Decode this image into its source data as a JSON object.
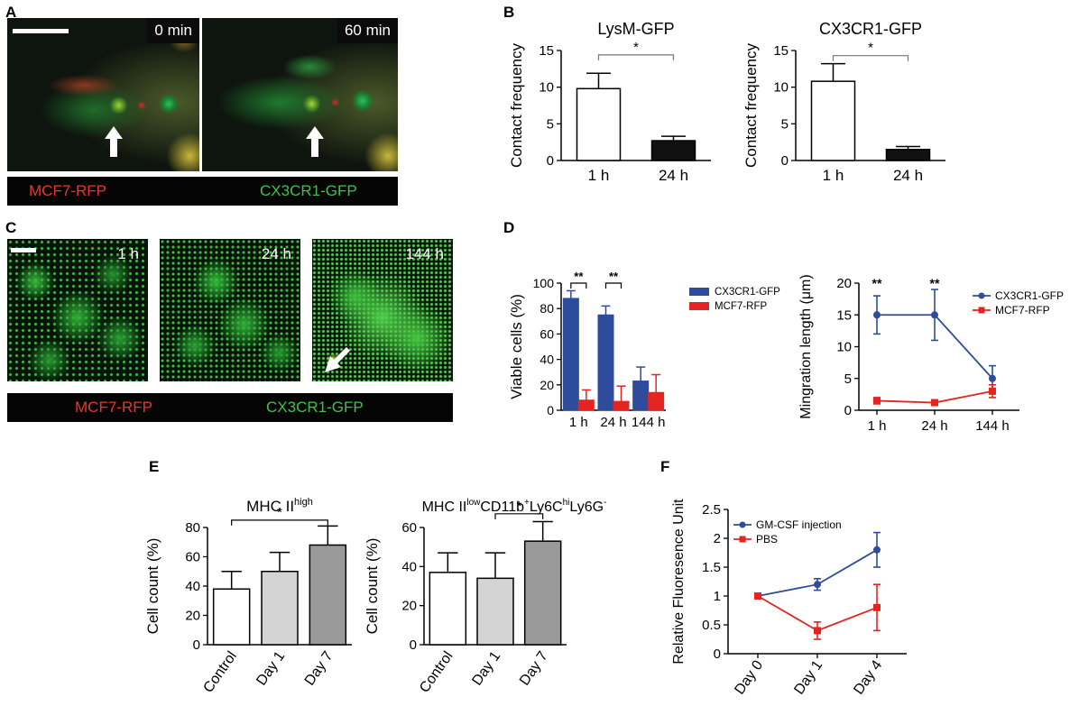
{
  "panels": {
    "A": {
      "letter": "A",
      "timestamps": [
        "0 min",
        "60 min"
      ],
      "legend_left": "MCF7-RFP",
      "legend_right": "CX3CR1-GFP"
    },
    "C": {
      "letter": "C",
      "timestamps": [
        "1 h",
        "24 h",
        "144 h"
      ],
      "legend_left": "MCF7-RFP",
      "legend_right": "CX3CR1-GFP"
    },
    "B": {
      "letter": "B"
    },
    "D": {
      "letter": "D"
    },
    "E": {
      "letter": "E"
    },
    "F": {
      "letter": "F"
    }
  },
  "colors": {
    "blue": "#2e4b9c",
    "red": "#e52421",
    "light_gray": "#d4d4d4",
    "dark_gray": "#9a9a9a",
    "black": "#111111",
    "white": "#ffffff"
  },
  "chart_data": [
    {
      "id": "B1",
      "type": "bar",
      "title": "LysM-GFP",
      "ylabel": "Contact frequency",
      "categories": [
        "1 h",
        "24 h"
      ],
      "values": [
        9.8,
        2.7
      ],
      "errors": [
        2.1,
        0.6
      ],
      "bar_colors": [
        "#ffffff",
        "#111111"
      ],
      "ylim": [
        0,
        15
      ],
      "yticks": [
        0,
        5,
        10,
        15
      ],
      "significance": [
        {
          "from": 0,
          "to": 1,
          "label": "*",
          "y": 14.4
        }
      ]
    },
    {
      "id": "B2",
      "type": "bar",
      "title": "CX3CR1-GFP",
      "ylabel": "Contact frequency",
      "categories": [
        "1 h",
        "24 h"
      ],
      "values": [
        10.8,
        1.5
      ],
      "errors": [
        2.4,
        0.4
      ],
      "bar_colors": [
        "#ffffff",
        "#111111"
      ],
      "ylim": [
        0,
        15
      ],
      "yticks": [
        0,
        5,
        10,
        15
      ],
      "significance": [
        {
          "from": 0,
          "to": 1,
          "label": "*",
          "y": 14.3
        }
      ]
    },
    {
      "id": "D1",
      "type": "bar",
      "ylabel": "Viable cells (%)",
      "categories": [
        "1 h",
        "24 h",
        "144 h"
      ],
      "series": [
        {
          "name": "CX3CR1-GFP",
          "values": [
            88,
            75,
            23
          ],
          "errors": [
            6,
            7,
            11
          ],
          "color": "#2e4b9c"
        },
        {
          "name": "MCF7-RFP",
          "values": [
            8,
            7,
            14
          ],
          "errors": [
            8,
            12,
            14
          ],
          "color": "#e52421"
        }
      ],
      "ylim": [
        0,
        100
      ],
      "yticks": [
        0,
        20,
        40,
        60,
        80,
        100
      ],
      "legend": "top-right",
      "significance": [
        {
          "category": 0,
          "label": "**",
          "y": 100
        },
        {
          "category": 1,
          "label": "**",
          "y": 100
        }
      ]
    },
    {
      "id": "D2",
      "type": "line",
      "ylabel": "Mingration length (μm)",
      "x": [
        "1 h",
        "24 h",
        "144 h"
      ],
      "series": [
        {
          "name": "CX3CR1-GFP",
          "values": [
            15,
            15,
            5
          ],
          "errors": [
            3,
            4,
            2
          ],
          "color": "#2e4b9c",
          "marker": "circle"
        },
        {
          "name": "MCF7-RFP",
          "values": [
            1.5,
            1.2,
            3
          ],
          "errors": [
            0.5,
            0.2,
            1
          ],
          "color": "#e52421",
          "marker": "square"
        }
      ],
      "ylim": [
        0,
        20
      ],
      "yticks": [
        0,
        5,
        10,
        15,
        20
      ],
      "legend": "top-right",
      "annotations": [
        {
          "x": 0,
          "label": "**",
          "y": 19.3
        },
        {
          "x": 1,
          "label": "**",
          "y": 19.3
        }
      ]
    },
    {
      "id": "E1",
      "type": "bar",
      "title_main": "MHC II",
      "title_sup": "high",
      "ylabel": "Cell count (%)",
      "categories": [
        "Control",
        "Day 1",
        "Day 7"
      ],
      "values": [
        38,
        50,
        68
      ],
      "errors": [
        12,
        13,
        13
      ],
      "bar_colors": [
        "#ffffff",
        "#d4d4d4",
        "#9a9a9a"
      ],
      "ylim": [
        0,
        80
      ],
      "yticks": [
        0,
        20,
        40,
        60,
        80
      ],
      "significance": [
        {
          "from": 0,
          "to": 2,
          "label": "*",
          "y": 85
        }
      ]
    },
    {
      "id": "E2",
      "type": "bar",
      "title_parts": [
        {
          "t": "MHC II",
          "sup": false
        },
        {
          "t": "low",
          "sup": true
        },
        {
          "t": "CD11b",
          "sup": false
        },
        {
          "t": "+",
          "sup": true
        },
        {
          "t": "Ly6C",
          "sup": false
        },
        {
          "t": "hi",
          "sup": true
        },
        {
          "t": "Ly6G",
          "sup": false
        },
        {
          "t": "-",
          "sup": true
        }
      ],
      "ylabel": "Cell count (%)",
      "categories": [
        "Control",
        "Day 1",
        "Day 7"
      ],
      "values": [
        37,
        34,
        53
      ],
      "errors": [
        10,
        13,
        10
      ],
      "bar_colors": [
        "#ffffff",
        "#d4d4d4",
        "#9a9a9a"
      ],
      "ylim": [
        0,
        60
      ],
      "yticks": [
        0,
        20,
        40,
        60
      ],
      "significance": [
        {
          "from": 1,
          "to": 2,
          "label": "*",
          "y": 67
        }
      ]
    },
    {
      "id": "F",
      "type": "line",
      "ylabel": "Relative Fluoresence Unit",
      "x": [
        "Day 0",
        "Day 1",
        "Day 4"
      ],
      "series": [
        {
          "name": "GM-CSF injection",
          "values": [
            1.0,
            1.2,
            1.8
          ],
          "errors": [
            0.02,
            0.1,
            0.3
          ],
          "color": "#2e4b9c",
          "marker": "circle"
        },
        {
          "name": "PBS",
          "values": [
            1.0,
            0.4,
            0.8
          ],
          "errors": [
            0.02,
            0.15,
            0.4
          ],
          "color": "#e52421",
          "marker": "square"
        }
      ],
      "ylim": [
        0,
        2.5
      ],
      "yticks": [
        0,
        0.5,
        1.0,
        1.5,
        2.0,
        2.5
      ],
      "legend": "top-left"
    }
  ]
}
